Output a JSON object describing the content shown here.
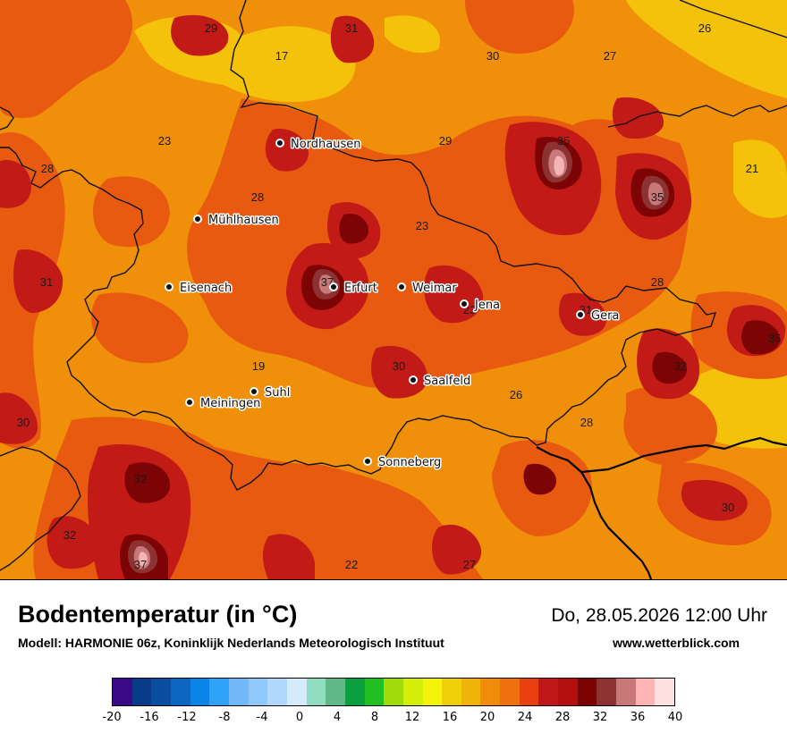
{
  "header": {
    "title": "Bodentemperatur (in °C)",
    "subtitle": "Modell: HARMONIE 06z, Koninklijk Nederlands Meteorologisch Instituut",
    "datetime": "Do, 28.05.2026 12:00 Uhr",
    "website": "www.wetterblick.com"
  },
  "cities": [
    {
      "name": "Nordhausen"
    },
    {
      "name": "Mühlhausen"
    },
    {
      "name": "Eisenach"
    },
    {
      "name": "Erfurt"
    },
    {
      "name": "Weimar"
    },
    {
      "name": "Jena"
    },
    {
      "name": "Gera"
    },
    {
      "name": "Saalfeld"
    },
    {
      "name": "Suhl"
    },
    {
      "name": "Meiningen"
    },
    {
      "name": "Sonneberg"
    }
  ],
  "value_labels": [
    "29",
    "31",
    "17",
    "30",
    "27",
    "26",
    "23",
    "29",
    "35",
    "21",
    "28",
    "28",
    "35",
    "23",
    "31",
    "37",
    "23",
    "28",
    "31",
    "32",
    "19",
    "30",
    "26",
    "30",
    "28",
    "32",
    "32",
    "30",
    "37",
    "22",
    "27",
    "35"
  ],
  "legend": {
    "colors": [
      "#3a0a86",
      "#083b8a",
      "#0a4ea0",
      "#0a66c0",
      "#0a84e8",
      "#2ea2f8",
      "#70b8f8",
      "#90c8fa",
      "#b0d8fc",
      "#d6eafd",
      "#90dcc0",
      "#60b888",
      "#0aa040",
      "#20c020",
      "#a0dc0a",
      "#d4ee0a",
      "#f4f40a",
      "#f0d00a",
      "#f0b40a",
      "#f08c0a",
      "#f07010",
      "#e84010",
      "#c01818",
      "#b40e0e",
      "#7a0202",
      "#8c3232",
      "#c87878",
      "#ffb4b4",
      "#ffe0e0"
    ],
    "ticks": [
      "-20",
      "-16",
      "-12",
      "-8",
      "-4",
      "0",
      "4",
      "8",
      "12",
      "16",
      "20",
      "24",
      "28",
      "32",
      "36",
      "40"
    ]
  },
  "map_colors": {
    "t20": "#f4c20a",
    "t24": "#f0900a",
    "t28": "#e85a10",
    "t30": "#c21a16",
    "t32": "#7d0404",
    "t34": "#8c3232",
    "t36": "#c87878",
    "t38": "#f2b4b4"
  }
}
